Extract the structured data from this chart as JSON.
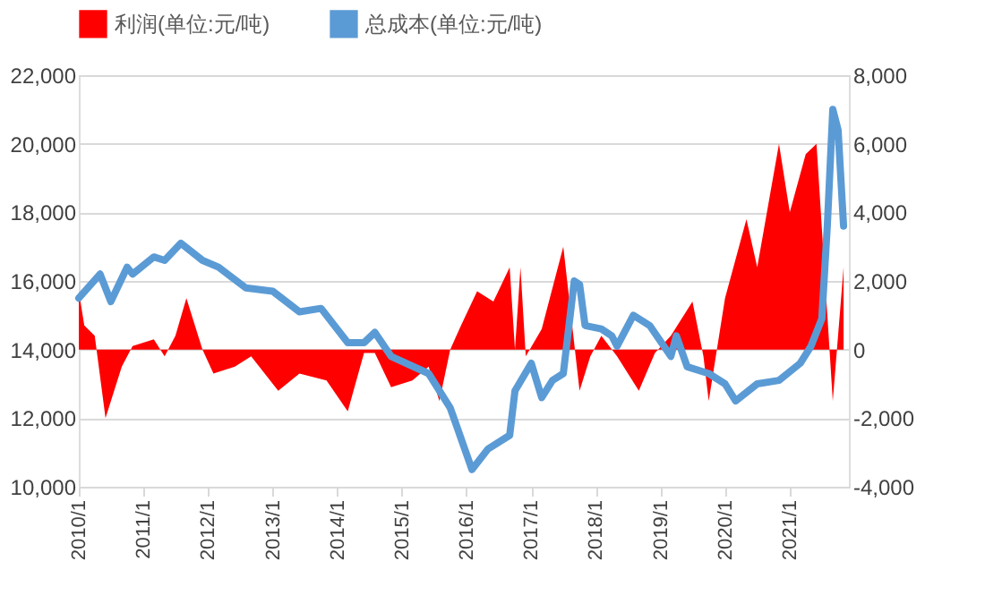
{
  "chart_data": {
    "type": "line",
    "legend": "top",
    "grid": "y",
    "xlim": [
      "2010-01",
      "2021-12"
    ],
    "xticks": [
      {
        "value": "2010-01",
        "label": "2010/1"
      },
      {
        "value": "2011-01",
        "label": "2011/1"
      },
      {
        "value": "2012-01",
        "label": "2012/1"
      },
      {
        "value": "2013-01",
        "label": "2013/1"
      },
      {
        "value": "2014-01",
        "label": "2014/1"
      },
      {
        "value": "2015-01",
        "label": "2015/1"
      },
      {
        "value": "2016-01",
        "label": "2016/1"
      },
      {
        "value": "2017-01",
        "label": "2017/1"
      },
      {
        "value": "2018-01",
        "label": "2018/1"
      },
      {
        "value": "2019-01",
        "label": "2019/1"
      },
      {
        "value": "2020-01",
        "label": "2020/1"
      },
      {
        "value": "2021-01",
        "label": "2021/1"
      }
    ],
    "ylim": [
      10000,
      22000
    ],
    "yticks": [
      {
        "value": 10000,
        "label": "10,000"
      },
      {
        "value": 12000,
        "label": "12,000"
      },
      {
        "value": 14000,
        "label": "14,000"
      },
      {
        "value": 16000,
        "label": "16,000"
      },
      {
        "value": 18000,
        "label": "18,000"
      },
      {
        "value": 20000,
        "label": "20,000"
      },
      {
        "value": 22000,
        "label": "22,000"
      }
    ],
    "y2lim": [
      -4000,
      8000
    ],
    "y2ticks": [
      {
        "value": -4000,
        "label": "-4,000"
      },
      {
        "value": -2000,
        "label": "-2,000"
      },
      0,
      {
        "value": 2000,
        "label": "2,000"
      },
      {
        "value": 4000,
        "label": "4,000"
      },
      {
        "value": 6000,
        "label": "6,000"
      },
      {
        "value": 8000,
        "label": "8,000"
      }
    ],
    "series": [
      {
        "name": "利润(单位:元/吨)",
        "type": "area",
        "axis": "y2",
        "color": "#ff0000",
        "x": [
          "2010-01",
          "2010-02",
          "2010-04",
          "2010-06",
          "2010-09",
          "2010-11",
          "2011-03",
          "2011-05",
          "2011-07",
          "2011-09",
          "2011-12",
          "2012-02",
          "2012-06",
          "2012-09",
          "2013-02",
          "2013-06",
          "2013-11",
          "2014-03",
          "2014-06",
          "2014-08",
          "2014-11",
          "2015-03",
          "2015-06",
          "2015-08",
          "2015-10",
          "2015-12",
          "2016-03",
          "2016-06",
          "2016-09",
          "2016-10",
          "2016-11",
          "2016-12",
          "2017-03",
          "2017-07",
          "2017-10",
          "2017-12",
          "2018-02",
          "2018-05",
          "2018-09",
          "2018-12",
          "2019-03",
          "2019-07",
          "2019-09",
          "2019-10",
          "2020-01",
          "2020-05",
          "2020-07",
          "2020-11",
          "2021-01",
          "2021-04",
          "2021-06",
          "2021-09",
          "2021-11"
        ],
        "values": [
          1700,
          700,
          400,
          -2000,
          -500,
          100,
          300,
          -200,
          400,
          1500,
          0,
          -700,
          -500,
          -200,
          -1200,
          -700,
          -900,
          -1800,
          -100,
          -100,
          -1100,
          -900,
          -500,
          -1500,
          0,
          700,
          1700,
          1400,
          2400,
          0,
          2400,
          -200,
          600,
          3000,
          -1200,
          -200,
          400,
          -200,
          -1200,
          -100,
          400,
          1400,
          -200,
          -1500,
          1500,
          3800,
          2400,
          6000,
          4000,
          5700,
          6000,
          -1500,
          2400
        ]
      },
      {
        "name": "总成本(单位:元/吨)",
        "axis": "y",
        "color": "#5b9bd5",
        "x": [
          "2010-01",
          "2010-05",
          "2010-07",
          "2010-10",
          "2010-11",
          "2011-03",
          "2011-05",
          "2011-08",
          "2011-12",
          "2012-03",
          "2012-08",
          "2013-01",
          "2013-06",
          "2013-10",
          "2014-03",
          "2014-06",
          "2014-08",
          "2014-11",
          "2015-06",
          "2015-10",
          "2016-02",
          "2016-05",
          "2016-09",
          "2016-10",
          "2017-01",
          "2017-03",
          "2017-05",
          "2017-07",
          "2017-09",
          "2017-10",
          "2017-11",
          "2018-02",
          "2018-04",
          "2018-05",
          "2018-08",
          "2018-11",
          "2019-03",
          "2019-04",
          "2019-06",
          "2019-10",
          "2020-01",
          "2020-03",
          "2020-07",
          "2020-11",
          "2021-03",
          "2021-05",
          "2021-07",
          "2021-08",
          "2021-09",
          "2021-10",
          "2021-11"
        ],
        "values": [
          15500,
          16200,
          15400,
          16400,
          16200,
          16700,
          16600,
          17100,
          16600,
          16400,
          15800,
          15700,
          15100,
          15200,
          14200,
          14200,
          14500,
          13800,
          13300,
          12300,
          10500,
          11100,
          11500,
          12800,
          13600,
          12600,
          13100,
          13300,
          16000,
          15900,
          14700,
          14600,
          14400,
          14100,
          15000,
          14700,
          13800,
          14400,
          13500,
          13300,
          13000,
          12500,
          13000,
          13100,
          13600,
          14100,
          14900,
          17600,
          21000,
          20400,
          17600
        ]
      }
    ]
  }
}
